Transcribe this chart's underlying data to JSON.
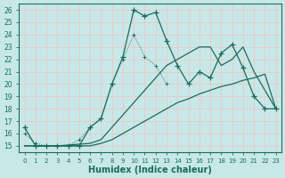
{
  "xlabel": "Humidex (Indice chaleur)",
  "bg_color": "#c8e8e8",
  "grid_color": "#e8c8c8",
  "line_color": "#1a6b5a",
  "xlim": [
    -0.5,
    23.5
  ],
  "ylim": [
    14.5,
    26.5
  ],
  "xticks": [
    0,
    1,
    2,
    3,
    4,
    5,
    6,
    7,
    8,
    9,
    10,
    11,
    12,
    13,
    14,
    15,
    16,
    17,
    18,
    19,
    20,
    21,
    22,
    23
  ],
  "yticks": [
    15,
    16,
    17,
    18,
    19,
    20,
    21,
    22,
    23,
    24,
    25,
    26
  ],
  "line1_x": [
    0,
    1,
    2,
    3,
    4,
    5,
    6,
    7,
    8,
    9,
    10,
    11,
    12,
    13,
    14,
    15,
    16,
    17,
    18,
    19,
    20,
    21,
    22,
    23
  ],
  "line1_y": [
    16.5,
    15.0,
    15.0,
    15.0,
    15.0,
    15.0,
    16.5,
    17.2,
    20.0,
    22.2,
    26.0,
    25.5,
    25.8,
    23.5,
    21.5,
    20.0,
    21.0,
    20.5,
    22.5,
    23.2,
    21.3,
    19.0,
    18.0,
    18.0
  ],
  "line2_x": [
    0,
    1,
    2,
    3,
    4,
    5,
    6,
    7,
    8,
    9,
    10,
    11,
    12,
    13
  ],
  "line2_y": [
    16.0,
    15.2,
    15.0,
    15.0,
    15.0,
    15.5,
    16.5,
    17.2,
    20.0,
    22.0,
    24.0,
    22.2,
    21.5,
    20.0
  ],
  "line3_x": [
    0,
    3,
    6,
    7,
    8,
    9,
    10,
    11,
    12,
    13,
    14,
    15,
    16,
    17,
    18,
    19,
    20,
    21,
    22,
    23
  ],
  "line3_y": [
    15.0,
    15.0,
    15.2,
    15.5,
    16.5,
    17.5,
    18.5,
    19.5,
    20.5,
    21.5,
    22.0,
    22.5,
    23.0,
    23.0,
    21.5,
    22.0,
    23.0,
    21.0,
    19.5,
    18.0
  ],
  "line4_x": [
    0,
    3,
    6,
    7,
    8,
    9,
    10,
    11,
    12,
    13,
    14,
    15,
    16,
    17,
    18,
    19,
    20,
    21,
    22,
    23
  ],
  "line4_y": [
    15.0,
    15.0,
    15.0,
    15.2,
    15.5,
    16.0,
    16.5,
    17.0,
    17.5,
    18.0,
    18.5,
    18.8,
    19.2,
    19.5,
    19.8,
    20.0,
    20.3,
    20.5,
    20.8,
    18.0
  ]
}
